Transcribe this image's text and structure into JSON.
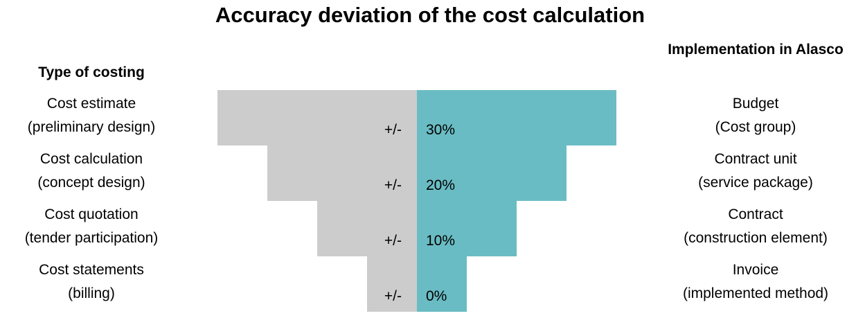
{
  "title": "Accuracy deviation of the cost calculation",
  "left_header": "Type of costing",
  "right_header": "Implementation in Alasco",
  "colors": {
    "negative_side": "#cccccc",
    "positive_side": "#6abcc4"
  },
  "chart_data": {
    "type": "bar",
    "title": "Accuracy deviation of the cost calculation",
    "orientation": "horizontal-diverging",
    "categories": [
      "Cost estimate (preliminary design)",
      "Cost calculation (concept design)",
      "Cost quotation (tender participation)",
      "Cost statements (billing)"
    ],
    "values": [
      30,
      20,
      10,
      0
    ],
    "unit": "%",
    "prefix": "+/-",
    "value_labels": [
      "30%",
      "20%",
      "10%",
      "0%"
    ]
  },
  "rows": [
    {
      "left_line1": "Cost estimate",
      "left_line2": "(preliminary design)",
      "right_line1": "Budget",
      "right_line2": "(Cost group)"
    },
    {
      "left_line1": "Cost calculation",
      "left_line2": "(concept design)",
      "right_line1": "Contract unit",
      "right_line2": "(service package)"
    },
    {
      "left_line1": "Cost quotation",
      "left_line2": "(tender participation)",
      "right_line1": "Contract",
      "right_line2": "(construction element)"
    },
    {
      "left_line1": "Cost statements",
      "left_line2": "(billing)",
      "right_line1": "Invoice",
      "right_line2": "(implemented method)"
    }
  ]
}
